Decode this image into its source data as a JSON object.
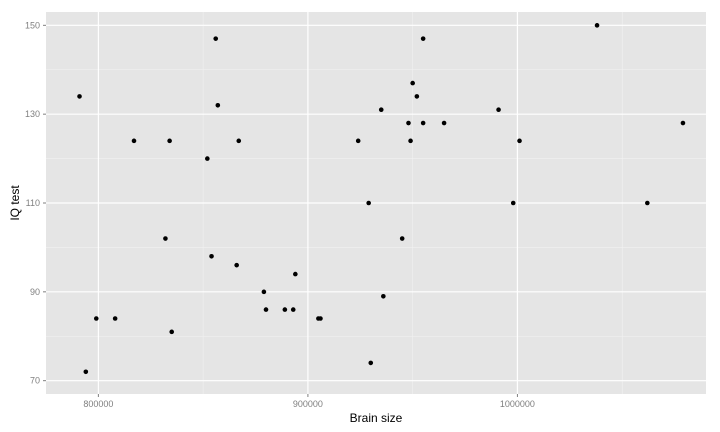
{
  "chart_data": {
    "type": "scatter",
    "xlabel": "Brain size",
    "ylabel": "IQ test",
    "xlim": [
      775000,
      1090000
    ],
    "ylim": [
      67,
      153
    ],
    "x_ticks": [
      800000,
      900000,
      1000000
    ],
    "x_tick_labels": [
      "800000",
      "900000",
      "1000000"
    ],
    "y_ticks": [
      70,
      90,
      110,
      130,
      150
    ],
    "y_tick_labels": [
      "70",
      "90",
      "110",
      "130",
      "150"
    ],
    "grid": true,
    "colors": {
      "panel": "#e5e5e5",
      "grid_major": "#ffffff",
      "grid_minor": "#f2f2f2",
      "point": "#000000",
      "tick_label": "#7f7f7f"
    },
    "points": [
      {
        "x": 791000,
        "y": 134
      },
      {
        "x": 794000,
        "y": 72
      },
      {
        "x": 799000,
        "y": 84
      },
      {
        "x": 808000,
        "y": 84
      },
      {
        "x": 817000,
        "y": 124
      },
      {
        "x": 832000,
        "y": 102
      },
      {
        "x": 834000,
        "y": 124
      },
      {
        "x": 835000,
        "y": 81
      },
      {
        "x": 852000,
        "y": 120
      },
      {
        "x": 854000,
        "y": 98
      },
      {
        "x": 856000,
        "y": 147
      },
      {
        "x": 857000,
        "y": 132
      },
      {
        "x": 866000,
        "y": 96
      },
      {
        "x": 867000,
        "y": 124
      },
      {
        "x": 879000,
        "y": 90
      },
      {
        "x": 880000,
        "y": 86
      },
      {
        "x": 889000,
        "y": 86
      },
      {
        "x": 893000,
        "y": 86
      },
      {
        "x": 894000,
        "y": 94
      },
      {
        "x": 905000,
        "y": 84
      },
      {
        "x": 906000,
        "y": 84
      },
      {
        "x": 924000,
        "y": 124
      },
      {
        "x": 929000,
        "y": 110
      },
      {
        "x": 930000,
        "y": 74
      },
      {
        "x": 935000,
        "y": 131
      },
      {
        "x": 936000,
        "y": 89
      },
      {
        "x": 945000,
        "y": 102
      },
      {
        "x": 948000,
        "y": 128
      },
      {
        "x": 949000,
        "y": 124
      },
      {
        "x": 950000,
        "y": 137
      },
      {
        "x": 952000,
        "y": 134
      },
      {
        "x": 955000,
        "y": 147
      },
      {
        "x": 955000,
        "y": 128
      },
      {
        "x": 965000,
        "y": 128
      },
      {
        "x": 991000,
        "y": 131
      },
      {
        "x": 998000,
        "y": 110
      },
      {
        "x": 1001000,
        "y": 124
      },
      {
        "x": 1038000,
        "y": 150
      },
      {
        "x": 1062000,
        "y": 110
      },
      {
        "x": 1079000,
        "y": 128
      }
    ]
  }
}
